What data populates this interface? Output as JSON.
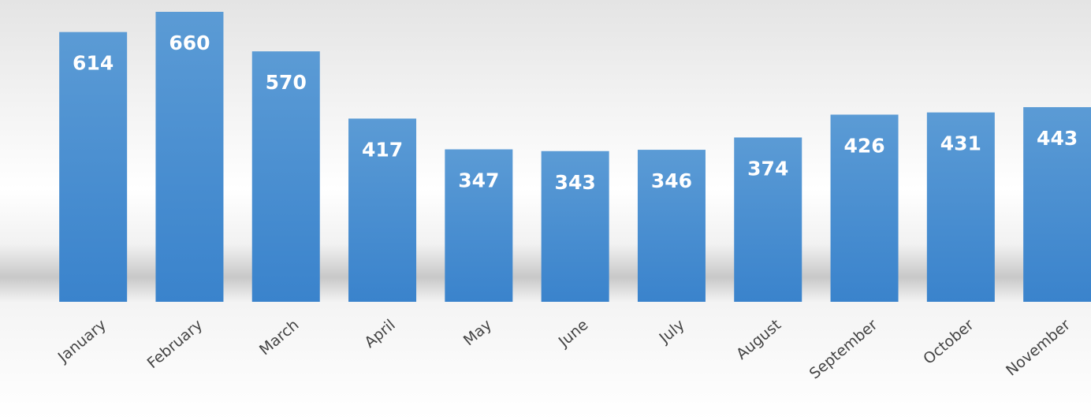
{
  "chart_data": {
    "type": "bar",
    "categories": [
      "January",
      "February",
      "March",
      "April",
      "May",
      "June",
      "July",
      "August",
      "September",
      "October",
      "November"
    ],
    "values": [
      614,
      660,
      570,
      417,
      347,
      343,
      346,
      374,
      426,
      431,
      443
    ],
    "color": "#4a90d9"
  }
}
